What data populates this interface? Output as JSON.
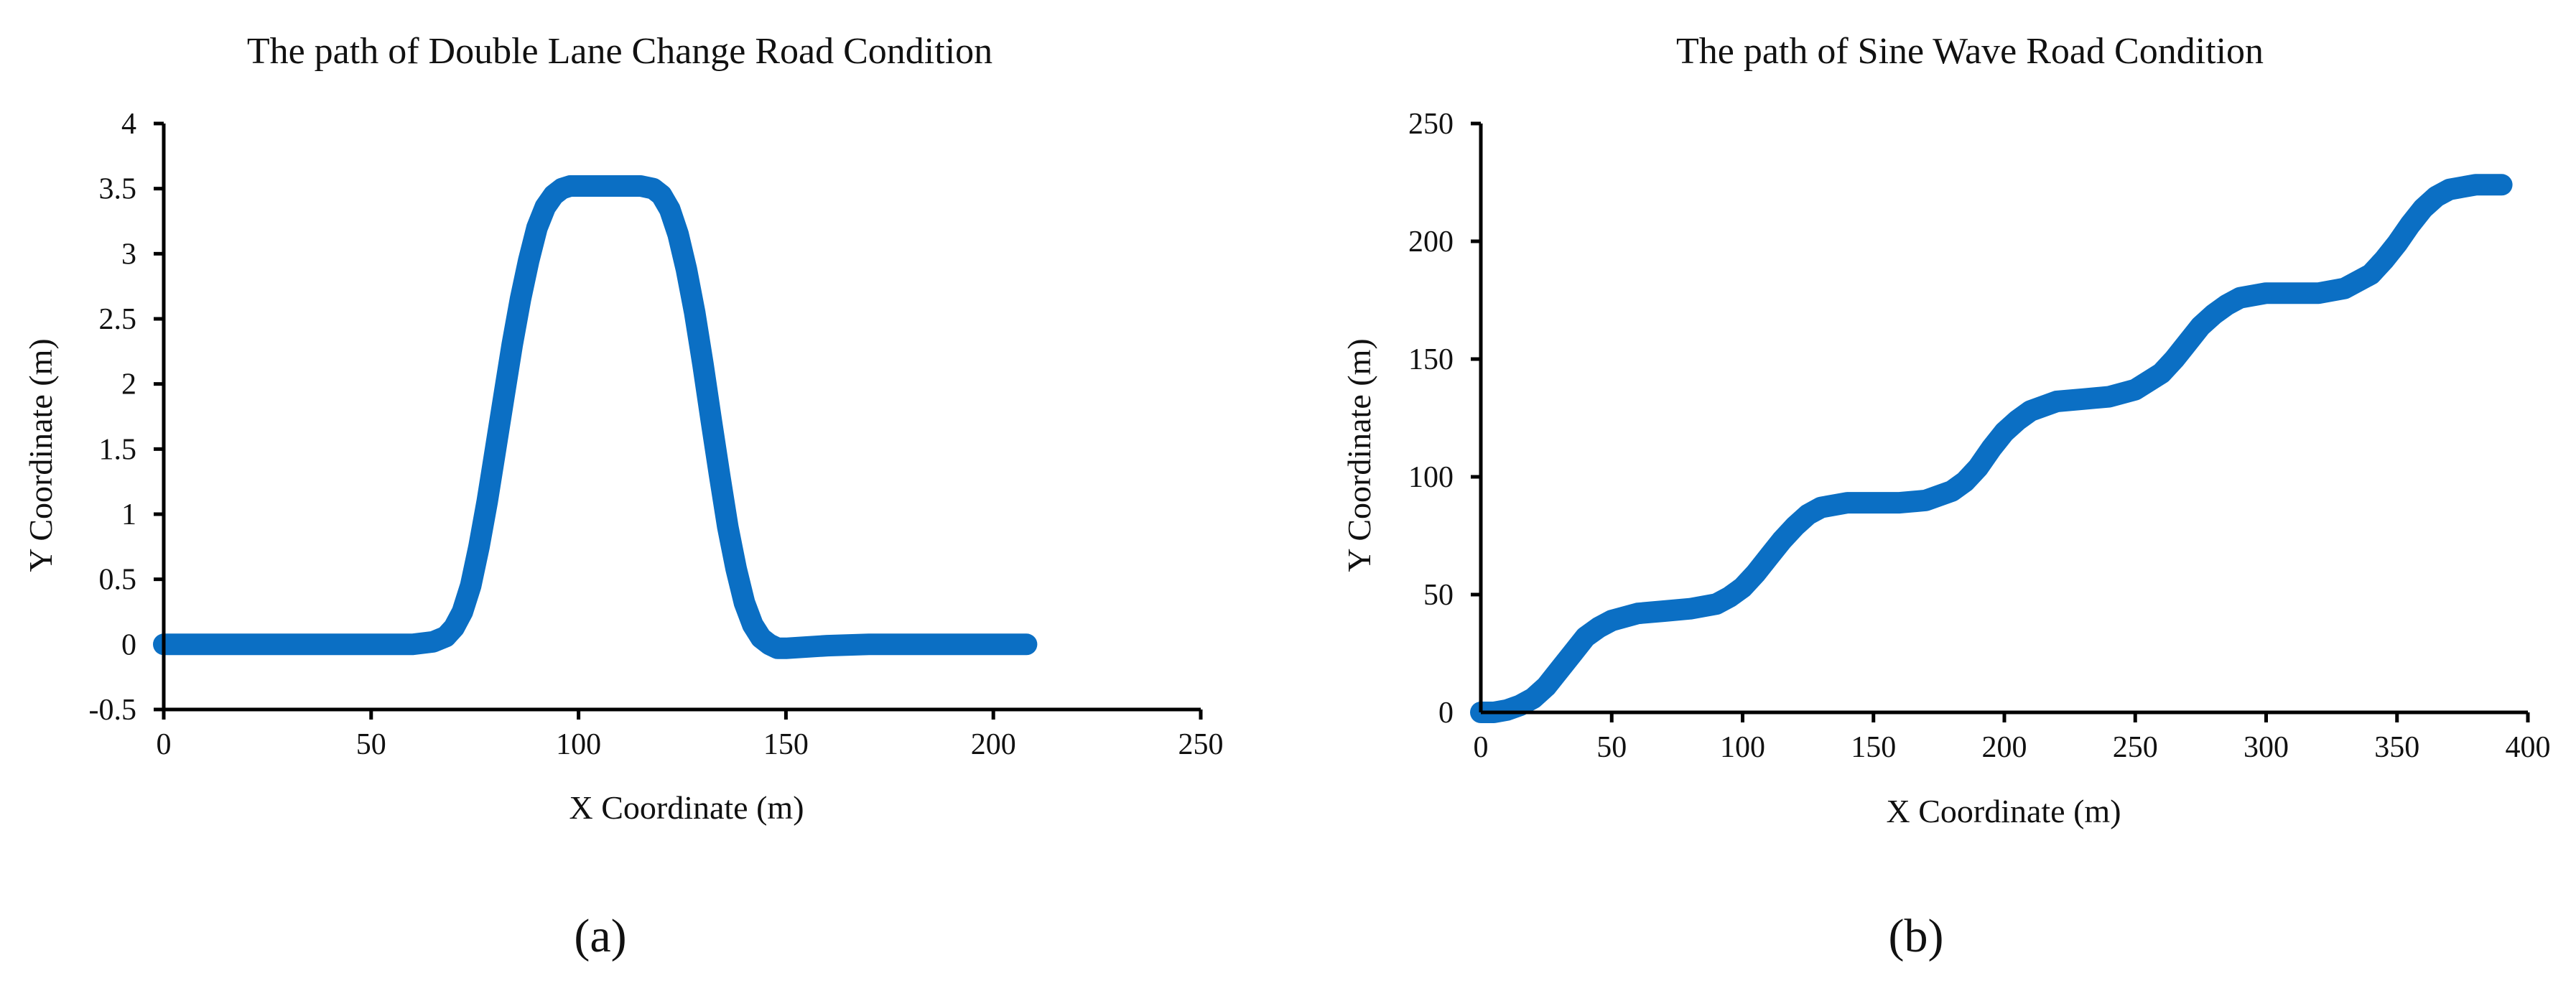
{
  "chart_data": [
    {
      "type": "line",
      "panel_label": "(a)",
      "title": "The path of Double Lane Change Road Condition",
      "xlabel": "X Coordinate (m)",
      "ylabel": "Y Coordinate (m)",
      "xlim": [
        0,
        250
      ],
      "ylim": [
        -0.5,
        4
      ],
      "xticks": [
        0,
        50,
        100,
        150,
        200,
        250
      ],
      "xtick_labels": [
        "0",
        "50",
        "100",
        "150",
        "200",
        "250"
      ],
      "yticks": [
        -0.5,
        0,
        0.5,
        1,
        1.5,
        2,
        2.5,
        3,
        3.5,
        4
      ],
      "ytick_labels": [
        "-0.5",
        "0",
        "0.5",
        "1",
        "1.5",
        "2",
        "2.5",
        "3",
        "3.5",
        "4"
      ],
      "grid": false,
      "legend": "none",
      "series": [
        {
          "color": "#0B6FC4",
          "x": [
            0,
            20,
            40,
            60,
            65,
            68,
            70,
            72,
            74,
            76,
            78,
            80,
            82,
            84,
            86,
            88,
            90,
            92,
            94,
            96,
            98,
            100,
            105,
            110,
            115,
            118,
            120,
            122,
            124,
            126,
            128,
            130,
            132,
            134,
            136,
            138,
            140,
            142,
            144,
            146,
            148,
            150,
            160,
            170,
            180,
            190,
            200,
            208
          ],
          "y": [
            0,
            0,
            0,
            0,
            0.02,
            0.06,
            0.13,
            0.25,
            0.45,
            0.75,
            1.1,
            1.5,
            1.9,
            2.3,
            2.65,
            2.95,
            3.2,
            3.36,
            3.45,
            3.5,
            3.52,
            3.52,
            3.52,
            3.52,
            3.52,
            3.5,
            3.45,
            3.34,
            3.15,
            2.88,
            2.55,
            2.15,
            1.72,
            1.3,
            0.9,
            0.58,
            0.32,
            0.15,
            0.05,
            0,
            -0.03,
            -0.03,
            -0.01,
            0,
            0,
            0,
            0,
            0
          ]
        }
      ]
    },
    {
      "type": "line",
      "panel_label": "(b)",
      "title": "The path of Sine Wave Road Condition",
      "xlabel": "X Coordinate (m)",
      "ylabel": "Y Coordinate (m)",
      "xlim": [
        0,
        400
      ],
      "ylim": [
        0,
        250
      ],
      "xticks": [
        0,
        50,
        100,
        150,
        200,
        250,
        300,
        350,
        400
      ],
      "xtick_labels": [
        "0",
        "50",
        "100",
        "150",
        "200",
        "250",
        "300",
        "350",
        "400"
      ],
      "yticks": [
        0,
        50,
        100,
        150,
        200,
        250
      ],
      "ytick_labels": [
        "0",
        "50",
        "100",
        "150",
        "200",
        "250"
      ],
      "grid": false,
      "legend": "none",
      "series": [
        {
          "color": "#0B6FC4",
          "x": [
            0,
            5,
            10,
            15,
            20,
            25,
            30,
            35,
            40,
            45,
            50,
            60,
            70,
            80,
            90,
            95,
            100,
            105,
            110,
            115,
            120,
            125,
            130,
            140,
            150,
            160,
            170,
            180,
            185,
            190,
            195,
            200,
            205,
            210,
            220,
            230,
            240,
            250,
            260,
            265,
            270,
            275,
            280,
            285,
            290,
            300,
            310,
            320,
            330,
            340,
            345,
            350,
            355,
            360,
            365,
            370,
            380,
            390
          ],
          "y": [
            0,
            0,
            1,
            3,
            6,
            11,
            18,
            25,
            32,
            36,
            39,
            42,
            43,
            44,
            46,
            49,
            53,
            59,
            66,
            73,
            79,
            84,
            87,
            89,
            89,
            89,
            90,
            94,
            98,
            104,
            112,
            119,
            124,
            128,
            132,
            133,
            134,
            137,
            144,
            150,
            157,
            164,
            169,
            173,
            176,
            178,
            178,
            178,
            180,
            186,
            192,
            199,
            207,
            214,
            219,
            222,
            224,
            224
          ]
        }
      ]
    }
  ]
}
